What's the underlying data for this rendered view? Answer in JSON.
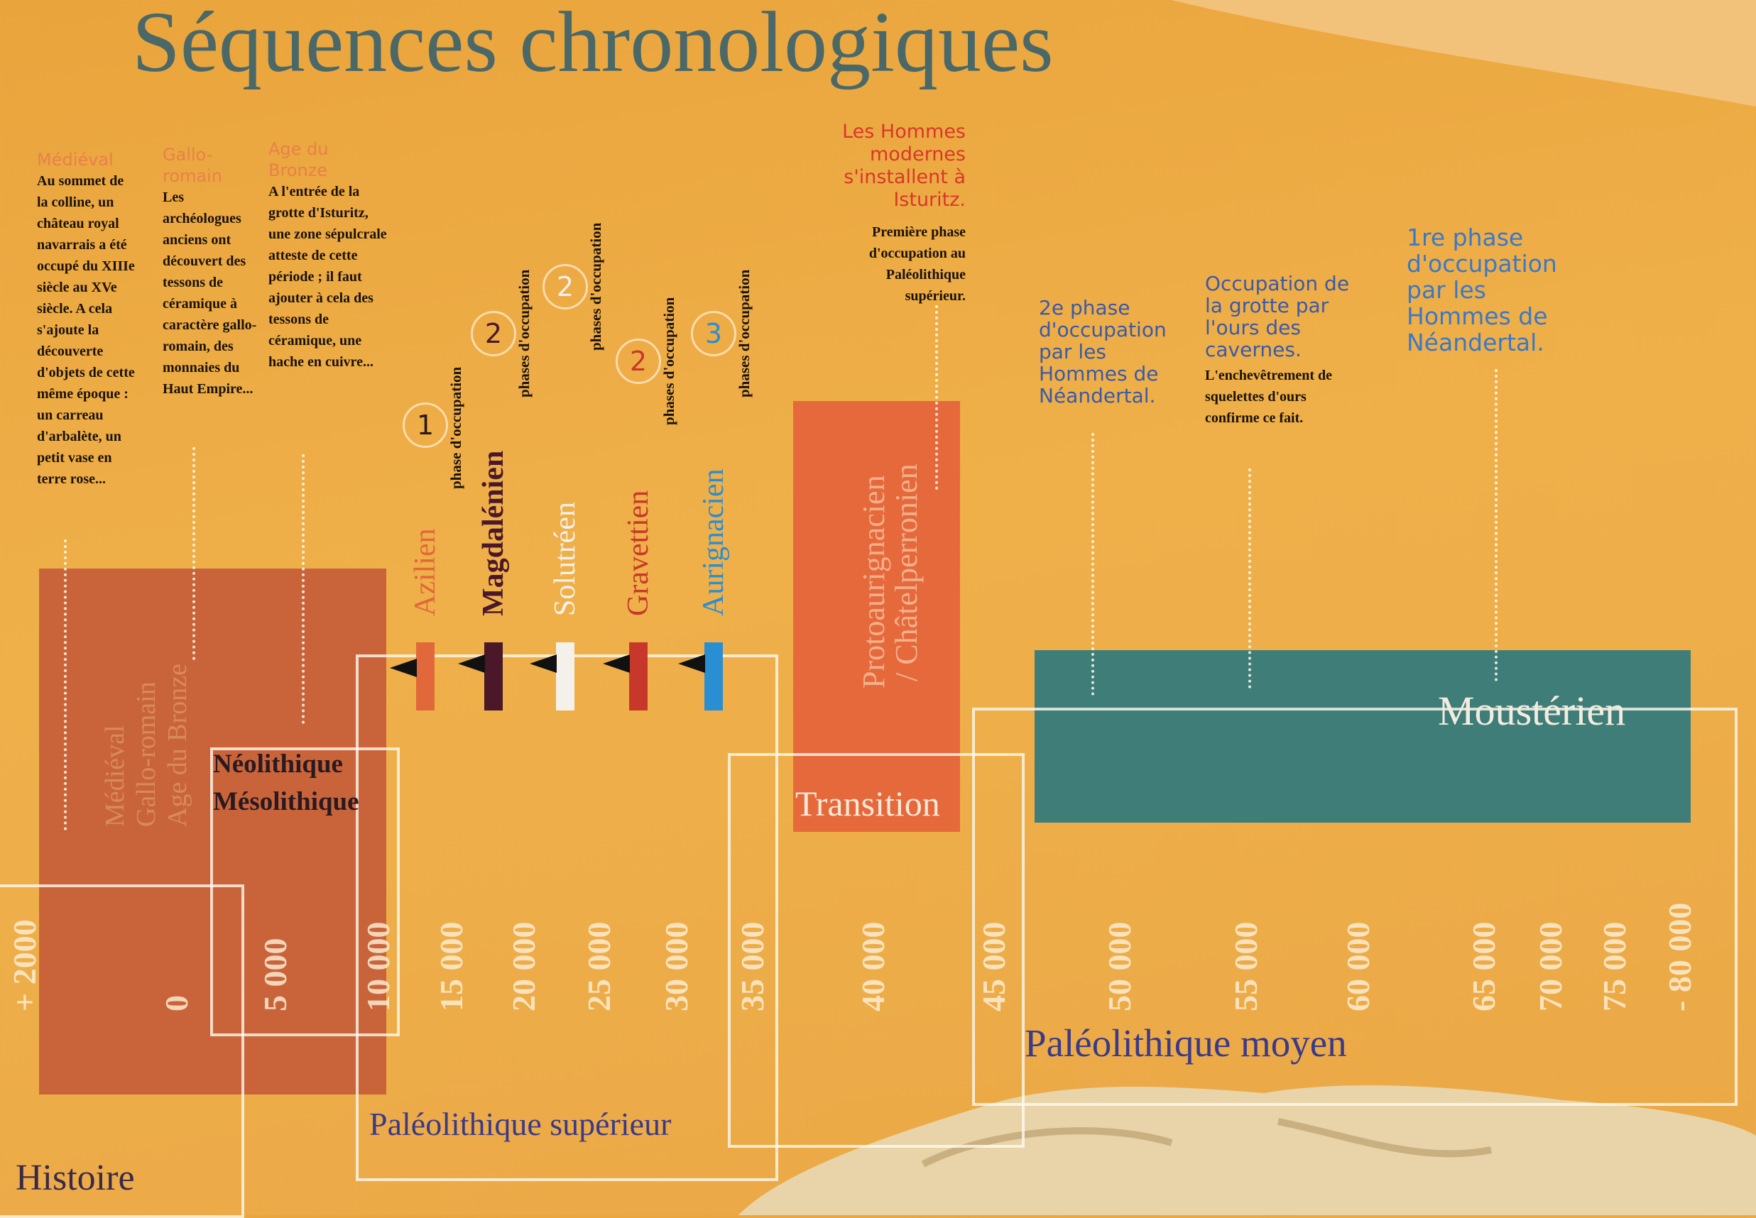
{
  "title": "Séquences chronologiques",
  "notes": [
    {
      "heading": "Médiéval",
      "text": "Au sommet de la colline, un château royal navarrais a été occupé du XIIIe siècle au XVe siècle. A cela s'ajoute la découverte d'objets de cette même époque : un carreau d'arbalète, un petit vase en terre rose..."
    },
    {
      "heading": "Gallo-romain",
      "text": "Les archéologues anciens ont découvert des tessons de céramique à caractère gallo-romain, des monnaies du Haut Empire..."
    },
    {
      "heading": "Age du Bronze",
      "text": "A l'entrée de la grotte d'Isturitz, une zone sépulcrale atteste de cette période ; il faut ajouter à cela des tessons de céramique, une hache en cuivre..."
    },
    {
      "heading": "Les Hommes modernes s'installent à Isturitz.",
      "text": "Première phase d'occupation au Paléolithique supérieur."
    },
    {
      "heading": "2e phase d'occupation par les Hommes de Néandertal."
    },
    {
      "heading": "Occupation de la grotte par l'ours des cavernes.",
      "text": "L'enchevêtrement de squelettes d'ours confirme ce fait."
    },
    {
      "heading": "1re phase d'occupation par les Hommes de Néandertal."
    }
  ],
  "cultures": [
    {
      "number": "1",
      "name": "Azilien",
      "phase": "phase d'occupation",
      "color": "#e0683a"
    },
    {
      "number": "2",
      "name": "Magdalénien",
      "phase": "phases d'occupation",
      "color": "#4a1828"
    },
    {
      "number": "2",
      "name": "Solutréen",
      "phase": "phases d'occupation",
      "color": "#f4f0ea"
    },
    {
      "number": "2",
      "name": "Gravettien",
      "phase": "phases d'occupation",
      "color": "#c8382a"
    },
    {
      "number": "3",
      "name": "Aurignacien",
      "phase": "phases d'occupation",
      "color": "#2a8ed2"
    }
  ],
  "blocks": {
    "histoire": [
      "Médiéval",
      "Gallo-romain",
      "Age du Bronze"
    ],
    "neolithique": "Néolithique",
    "mesolithique": "Mésolithique",
    "transition_cultures": [
      "Protoaurignacien",
      "/ Châtelperronien"
    ],
    "transition": "Transition",
    "mousterien": "Moustérien"
  },
  "ticks": [
    "+ 2000",
    "0",
    "5 000",
    "10 000",
    "15 000",
    "20 000",
    "25 000",
    "30 000",
    "35 000",
    "40 000",
    "45 000",
    "50 000",
    "55 000",
    "60 000",
    "65 000",
    "70 000",
    "75 000",
    "- 80 000"
  ],
  "periods": {
    "histoire": "Histoire",
    "paleo_superieur": "Paléolithique supérieur",
    "paleo_moyen": "Paléolithique moyen"
  }
}
